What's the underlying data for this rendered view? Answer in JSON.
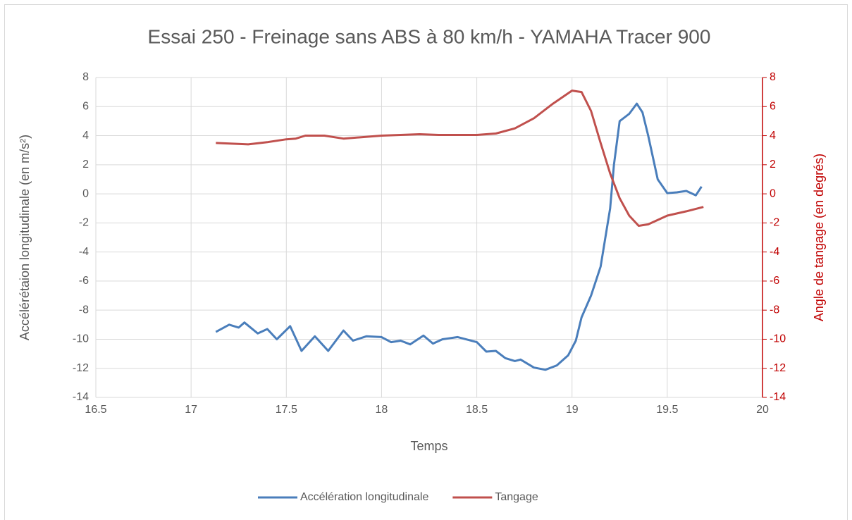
{
  "chart_data": {
    "type": "line",
    "title": "Essai 250 - Freinage sans ABS à 80 km/h - YAMAHA Tracer 900",
    "x_label": "Temps",
    "y_label": "Accélérétaion longitudinale (en m/s²)",
    "y2_label": "Angle de tangage (en degrés)",
    "xlim": [
      16.5,
      20
    ],
    "xticks": [
      16.5,
      17,
      17.5,
      18,
      18.5,
      19,
      19.5,
      20
    ],
    "ylim": [
      -14,
      8
    ],
    "yticks": [
      -14,
      -12,
      -10,
      -8,
      -6,
      -4,
      -2,
      0,
      2,
      4,
      6,
      8
    ],
    "y2lim": [
      -14,
      8
    ],
    "y2ticks": [
      -14,
      -12,
      -10,
      -8,
      -6,
      -4,
      -2,
      0,
      2,
      4,
      6,
      8
    ],
    "grid": true,
    "legend": "bottom",
    "series": [
      {
        "name": "Accélération longitudinale",
        "color": "#4a7ebb",
        "x": [
          17.13,
          17.2,
          17.25,
          17.28,
          17.35,
          17.4,
          17.45,
          17.52,
          17.58,
          17.65,
          17.72,
          17.8,
          17.85,
          17.92,
          18.0,
          18.05,
          18.1,
          18.15,
          18.22,
          18.27,
          18.32,
          18.4,
          18.5,
          18.55,
          18.6,
          18.65,
          18.7,
          18.73,
          18.8,
          18.86,
          18.92,
          18.98,
          19.02,
          19.05,
          19.1,
          19.15,
          19.2,
          19.22,
          19.25,
          19.3,
          19.34,
          19.37,
          19.4,
          19.45,
          19.5,
          19.55,
          19.6,
          19.65,
          19.68
        ],
        "values": [
          -9.5,
          -9.0,
          -9.2,
          -8.85,
          -9.6,
          -9.3,
          -10.0,
          -9.1,
          -10.8,
          -9.8,
          -10.8,
          -9.4,
          -10.1,
          -9.8,
          -9.85,
          -10.2,
          -10.1,
          -10.35,
          -9.75,
          -10.3,
          -10.0,
          -9.85,
          -10.2,
          -10.85,
          -10.8,
          -11.3,
          -11.5,
          -11.4,
          -11.95,
          -12.1,
          -11.8,
          -11.1,
          -10.1,
          -8.5,
          -7.0,
          -5.0,
          -1.0,
          2.0,
          5.0,
          5.5,
          6.2,
          5.6,
          4.0,
          1.0,
          0.05,
          0.1,
          0.2,
          -0.1,
          0.5
        ]
      },
      {
        "name": "Tangage",
        "color": "#c0504d",
        "axis": "y2",
        "x": [
          17.13,
          17.3,
          17.4,
          17.5,
          17.55,
          17.6,
          17.7,
          17.8,
          17.9,
          18.0,
          18.2,
          18.3,
          18.4,
          18.5,
          18.6,
          18.7,
          18.8,
          18.9,
          19.0,
          19.05,
          19.1,
          19.15,
          19.2,
          19.25,
          19.3,
          19.35,
          19.4,
          19.5,
          19.6,
          19.69
        ],
        "values": [
          3.5,
          3.4,
          3.55,
          3.75,
          3.8,
          4.0,
          4.0,
          3.8,
          3.9,
          4.0,
          4.1,
          4.05,
          4.05,
          4.05,
          4.15,
          4.5,
          5.2,
          6.2,
          7.1,
          7.0,
          5.7,
          3.5,
          1.4,
          -0.3,
          -1.5,
          -2.2,
          -2.1,
          -1.5,
          -1.2,
          -0.9
        ]
      }
    ]
  }
}
